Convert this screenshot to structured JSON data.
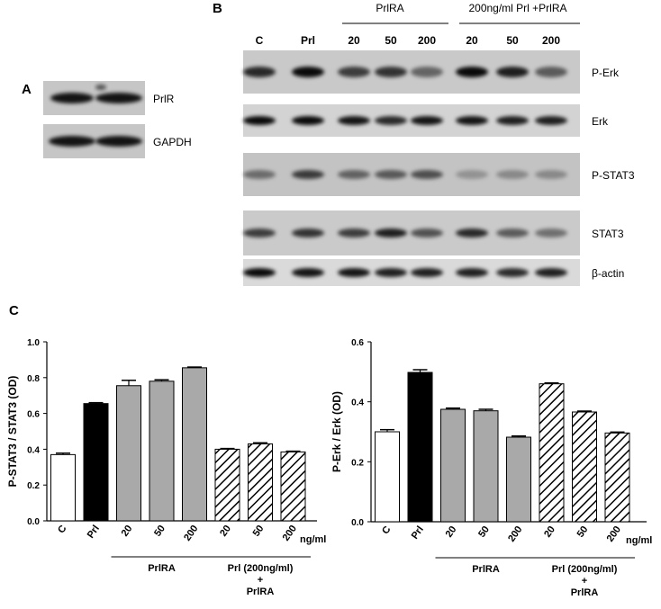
{
  "panel_a": {
    "letter": "A",
    "blots": [
      {
        "label": "PrlR"
      },
      {
        "label": "GAPDH"
      }
    ]
  },
  "panel_b": {
    "letter": "B",
    "group_labels": [
      "PrlRA",
      "200ng/ml Prl +PrlRA"
    ],
    "lanes": [
      "C",
      "Prl",
      "20",
      "50",
      "200",
      "20",
      "50",
      "200"
    ],
    "blots": [
      {
        "label": "P-Erk"
      },
      {
        "label": "Erk"
      },
      {
        "label": "P-STAT3"
      },
      {
        "label": "STAT3"
      },
      {
        "label": "β-actin"
      }
    ]
  },
  "panel_c": {
    "letter": "C"
  },
  "chart_data": [
    {
      "type": "bar",
      "ylabel": "P-STAT3 / STAT3 (OD)",
      "ylim": [
        0,
        1.0
      ],
      "yticks": [
        "0.0",
        "0.2",
        "0.4",
        "0.6",
        "0.8",
        "1.0"
      ],
      "categories": [
        "C",
        "Prl",
        "20",
        "50",
        "200",
        "20",
        "50",
        "200"
      ],
      "values": [
        0.37,
        0.655,
        0.755,
        0.78,
        0.855,
        0.4,
        0.43,
        0.385
      ],
      "errors": [
        0.008,
        0.005,
        0.03,
        0.008,
        0.004,
        0.004,
        0.006,
        0.004
      ],
      "fills": [
        "white",
        "black",
        "gray",
        "gray",
        "gray",
        "hatch",
        "hatch",
        "hatch"
      ],
      "unit_label": "ng/ml",
      "group_labels": [
        "PrlRA",
        "Prl (200ng/ml)\n+\nPrlRA"
      ]
    },
    {
      "type": "bar",
      "ylabel": "P-Erk / Erk (OD)",
      "ylim": [
        0,
        0.6
      ],
      "yticks": [
        "0.0",
        "0.2",
        "0.4",
        "0.6"
      ],
      "categories": [
        "C",
        "Prl",
        "20",
        "50",
        "200",
        "20",
        "50",
        "200"
      ],
      "values": [
        0.3,
        0.498,
        0.375,
        0.37,
        0.282,
        0.46,
        0.366,
        0.296
      ],
      "errors": [
        0.007,
        0.009,
        0.004,
        0.005,
        0.004,
        0.003,
        0.003,
        0.003
      ],
      "fills": [
        "white",
        "black",
        "gray",
        "gray",
        "gray",
        "hatch",
        "hatch",
        "hatch"
      ],
      "unit_label": "ng/ml",
      "group_labels": [
        "PrlRA",
        "Prl (200ng/ml)\n+\nPrlRA"
      ]
    }
  ]
}
